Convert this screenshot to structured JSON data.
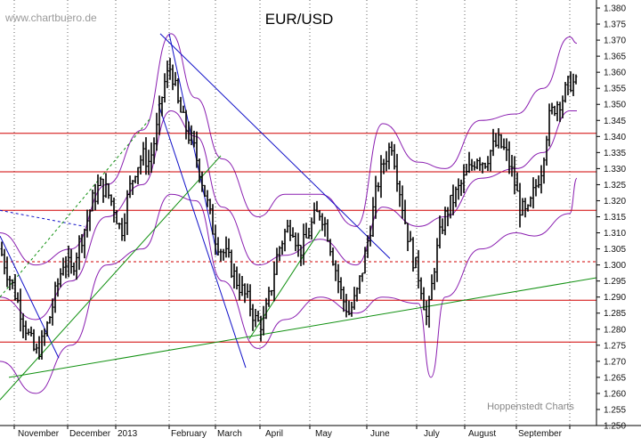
{
  "header": {
    "title": "EUR/USD",
    "watermark": "www.chartbuero.de"
  },
  "footer": {
    "credit": "Hoppenstedt Charts"
  },
  "colors": {
    "candle": "#000000",
    "support": "#d00000",
    "trend_down": "#1010c8",
    "trend_up": "#109010",
    "bollinger": "#8a1eb0",
    "grid": "#000000"
  },
  "chart_data": {
    "type": "candlestick",
    "title": "EUR/USD",
    "ylim": [
      1.25,
      1.38
    ],
    "yticks": [
      "1.380",
      "1.375",
      "1.370",
      "1.365",
      "1.360",
      "1.355",
      "1.350",
      "1.345",
      "1.340",
      "1.335",
      "1.330",
      "1.325",
      "1.320",
      "1.315",
      "1.310",
      "1.305",
      "1.300",
      "1.295",
      "1.290",
      "1.285",
      "1.280",
      "1.275",
      "1.270",
      "1.265",
      "1.260",
      "1.255",
      "1.250"
    ],
    "xticks": [
      "November",
      "December",
      "2013",
      "February",
      "March",
      "April",
      "May",
      "June",
      "July",
      "August",
      "September"
    ],
    "horizontal_lines": [
      1.341,
      1.329,
      1.317,
      1.289,
      1.276
    ],
    "dashed_lines": [
      1.301
    ],
    "price_path": [
      [
        0,
        1.305
      ],
      [
        8,
        1.298
      ],
      [
        16,
        1.292
      ],
      [
        24,
        1.285
      ],
      [
        32,
        1.278
      ],
      [
        40,
        1.272
      ],
      [
        48,
        1.276
      ],
      [
        56,
        1.284
      ],
      [
        64,
        1.293
      ],
      [
        72,
        1.302
      ],
      [
        80,
        1.298
      ],
      [
        88,
        1.306
      ],
      [
        96,
        1.312
      ],
      [
        104,
        1.32
      ],
      [
        112,
        1.325
      ],
      [
        120,
        1.323
      ],
      [
        128,
        1.318
      ],
      [
        136,
        1.31
      ],
      [
        144,
        1.322
      ],
      [
        152,
        1.33
      ],
      [
        160,
        1.334
      ],
      [
        168,
        1.332
      ],
      [
        176,
        1.342
      ],
      [
        184,
        1.356
      ],
      [
        192,
        1.362
      ],
      [
        200,
        1.35
      ],
      [
        208,
        1.343
      ],
      [
        216,
        1.338
      ],
      [
        224,
        1.33
      ],
      [
        232,
        1.32
      ],
      [
        240,
        1.31
      ],
      [
        248,
        1.305
      ],
      [
        256,
        1.302
      ],
      [
        264,
        1.296
      ],
      [
        272,
        1.292
      ],
      [
        280,
        1.288
      ],
      [
        288,
        1.282
      ],
      [
        296,
        1.282
      ],
      [
        304,
        1.292
      ],
      [
        312,
        1.304
      ],
      [
        320,
        1.31
      ],
      [
        328,
        1.313
      ],
      [
        336,
        1.304
      ],
      [
        344,
        1.308
      ],
      [
        352,
        1.314
      ],
      [
        360,
        1.317
      ],
      [
        368,
        1.31
      ],
      [
        376,
        1.3
      ],
      [
        384,
        1.29
      ],
      [
        392,
        1.285
      ],
      [
        400,
        1.29
      ],
      [
        408,
        1.3
      ],
      [
        416,
        1.312
      ],
      [
        424,
        1.325
      ],
      [
        432,
        1.333
      ],
      [
        440,
        1.338
      ],
      [
        448,
        1.325
      ],
      [
        456,
        1.312
      ],
      [
        464,
        1.302
      ],
      [
        472,
        1.295
      ],
      [
        480,
        1.282
      ],
      [
        488,
        1.3
      ],
      [
        496,
        1.312
      ],
      [
        504,
        1.318
      ],
      [
        512,
        1.322
      ],
      [
        520,
        1.326
      ],
      [
        528,
        1.33
      ],
      [
        536,
        1.334
      ],
      [
        544,
        1.332
      ],
      [
        552,
        1.336
      ],
      [
        560,
        1.338
      ],
      [
        568,
        1.335
      ],
      [
        576,
        1.328
      ],
      [
        584,
        1.318
      ],
      [
        592,
        1.315
      ],
      [
        600,
        1.323
      ],
      [
        608,
        1.33
      ],
      [
        616,
        1.345
      ],
      [
        624,
        1.35
      ],
      [
        632,
        1.352
      ],
      [
        640,
        1.357
      ],
      [
        648,
        1.356
      ]
    ],
    "trend_lines": [
      {
        "color": "trend_down",
        "style": "solid",
        "from": [
          180,
          1.372
        ],
        "to": [
          438,
          1.302
        ]
      },
      {
        "color": "trend_down",
        "style": "solid",
        "from": [
          178,
          1.35
        ],
        "to": [
          276,
          1.268
        ]
      },
      {
        "color": "trend_down",
        "style": "solid",
        "from": [
          190,
          1.372
        ],
        "to": [
          244,
          1.303
        ]
      },
      {
        "color": "trend_down",
        "style": "solid",
        "from": [
          0,
          1.309
        ],
        "to": [
          66,
          1.271
        ]
      },
      {
        "color": "trend_down",
        "style": "dashed",
        "from": [
          0,
          1.317
        ],
        "to": [
          95,
          1.312
        ]
      },
      {
        "color": "trend_up",
        "style": "solid",
        "from": [
          10,
          1.265
        ],
        "to": [
          700,
          1.296
        ]
      },
      {
        "color": "trend_up",
        "style": "solid",
        "from": [
          0,
          1.258
        ],
        "to": [
          248,
          1.334
        ]
      },
      {
        "color": "trend_up",
        "style": "dashed",
        "from": [
          0,
          1.29
        ],
        "to": [
          170,
          1.346
        ]
      },
      {
        "color": "trend_up",
        "style": "solid",
        "from": [
          280,
          1.277
        ],
        "to": [
          360,
          1.311
        ]
      }
    ],
    "bollinger_upper": [
      [
        0,
        1.31
      ],
      [
        40,
        1.3
      ],
      [
        80,
        1.305
      ],
      [
        120,
        1.325
      ],
      [
        160,
        1.342
      ],
      [
        192,
        1.372
      ],
      [
        220,
        1.352
      ],
      [
        250,
        1.333
      ],
      [
        290,
        1.315
      ],
      [
        320,
        1.322
      ],
      [
        360,
        1.322
      ],
      [
        400,
        1.312
      ],
      [
        430,
        1.344
      ],
      [
        470,
        1.332
      ],
      [
        500,
        1.33
      ],
      [
        540,
        1.345
      ],
      [
        580,
        1.347
      ],
      [
        610,
        1.355
      ],
      [
        640,
        1.371
      ],
      [
        648,
        1.369
      ]
    ],
    "bollinger_middle": [
      [
        0,
        1.29
      ],
      [
        40,
        1.283
      ],
      [
        80,
        1.295
      ],
      [
        120,
        1.315
      ],
      [
        160,
        1.325
      ],
      [
        192,
        1.348
      ],
      [
        220,
        1.34
      ],
      [
        250,
        1.318
      ],
      [
        290,
        1.3
      ],
      [
        320,
        1.303
      ],
      [
        360,
        1.308
      ],
      [
        400,
        1.3
      ],
      [
        430,
        1.318
      ],
      [
        470,
        1.312
      ],
      [
        500,
        1.315
      ],
      [
        540,
        1.327
      ],
      [
        580,
        1.33
      ],
      [
        610,
        1.335
      ],
      [
        640,
        1.348
      ],
      [
        648,
        1.348
      ]
    ],
    "bollinger_lower": [
      [
        0,
        1.27
      ],
      [
        40,
        1.26
      ],
      [
        80,
        1.275
      ],
      [
        120,
        1.3
      ],
      [
        160,
        1.305
      ],
      [
        192,
        1.322
      ],
      [
        220,
        1.32
      ],
      [
        250,
        1.295
      ],
      [
        290,
        1.274
      ],
      [
        320,
        1.283
      ],
      [
        360,
        1.29
      ],
      [
        400,
        1.285
      ],
      [
        430,
        1.29
      ],
      [
        470,
        1.288
      ],
      [
        484,
        1.265
      ],
      [
        500,
        1.29
      ],
      [
        540,
        1.305
      ],
      [
        580,
        1.31
      ],
      [
        600,
        1.309
      ],
      [
        640,
        1.316
      ],
      [
        648,
        1.327
      ]
    ]
  }
}
